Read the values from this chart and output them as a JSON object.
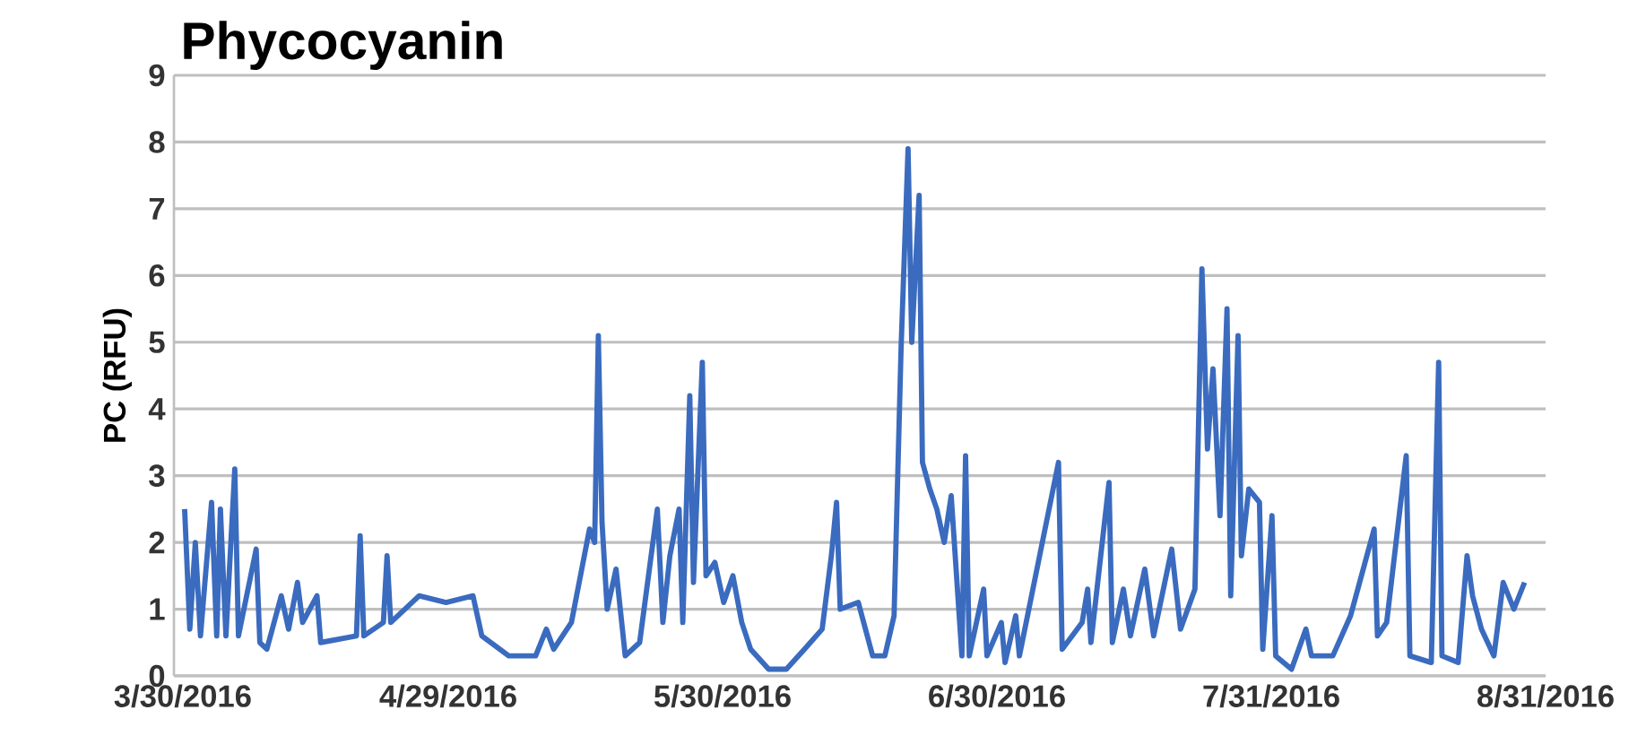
{
  "chart_data": {
    "type": "line",
    "title": "Phycocyanin",
    "ylabel": "PC (RFU)",
    "xlim": [
      "2016-03-29",
      "2016-08-31"
    ],
    "xticks": [
      {
        "value": "2016-03-30",
        "label": "3/30/2016"
      },
      {
        "value": "2016-04-29",
        "label": "4/29/2016"
      },
      {
        "value": "2016-05-30",
        "label": "5/30/2016"
      },
      {
        "value": "2016-06-30",
        "label": "6/30/2016"
      },
      {
        "value": "2016-07-31",
        "label": "7/31/2016"
      },
      {
        "value": "2016-08-31",
        "label": "8/31/2016"
      }
    ],
    "ylim": [
      0,
      9
    ],
    "yticks": [
      0,
      1,
      2,
      3,
      4,
      5,
      6,
      7,
      8,
      9
    ],
    "grid": "y",
    "marker": "none",
    "line_style": "solid",
    "series": [
      {
        "color": "#3a6bbf",
        "x": [
          "2016-03-30T05:00",
          "2016-03-30T19:00",
          "2016-03-31T10:00",
          "2016-04-01T00:00",
          "2016-04-02T06:00",
          "2016-04-02T20:00",
          "2016-04-03T06:00",
          "2016-04-03T21:00",
          "2016-04-04T21:00",
          "2016-04-05T07:00",
          "2016-04-07T07:00",
          "2016-04-07T17:00",
          "2016-04-08T12:00",
          "2016-04-10T03:00",
          "2016-04-10T23:00",
          "2016-04-11T23:00",
          "2016-04-12T13:00",
          "2016-04-14T04:00",
          "2016-04-14T14:00",
          "2016-04-18T15:00",
          "2016-04-19T01:00",
          "2016-04-19T11:00",
          "2016-04-21T16:00",
          "2016-04-22T02:00",
          "2016-04-22T12:00",
          "2016-04-25T17:00",
          "2016-04-28T18:00",
          "2016-05-01T19:00",
          "2016-05-02T19:00",
          "2016-05-05T20:00",
          "2016-05-08T21:00",
          "2016-05-10T02:00",
          "2016-05-10T22:00",
          "2016-05-12T22:00",
          "2016-05-14T23:00",
          "2016-05-15T13:00",
          "2016-05-15T23:00",
          "2016-05-16T09:00",
          "2016-05-16T23:00",
          "2016-05-17T23:00",
          "2016-05-19T00:00",
          "2016-05-20T15:00",
          "2016-05-22T15:00",
          "2016-05-23T06:00",
          "2016-05-24T01:00",
          "2016-05-25T02:00",
          "2016-05-25T12:00",
          "2016-05-26T07:00",
          "2016-05-26T17:00",
          "2016-05-27T17:00",
          "2016-05-28T03:00",
          "2016-05-29T03:00",
          "2016-05-30T03:00",
          "2016-05-31T04:00",
          "2016-06-01T04:00",
          "2016-06-02T04:00",
          "2016-06-04T05:00",
          "2016-06-06T05:00",
          "2016-06-08T06:00",
          "2016-06-10T06:00",
          "2016-06-11T07:00",
          "2016-06-11T21:00",
          "2016-06-12T07:00",
          "2016-06-14T08:00",
          "2016-06-15T23:00",
          "2016-06-17T08:00",
          "2016-06-18T09:00",
          "2016-06-19T04:00",
          "2016-06-19T23:00",
          "2016-06-20T09:00",
          "2016-06-21T05:00",
          "2016-06-21T14:00",
          "2016-06-22T10:00",
          "2016-06-23T05:00",
          "2016-06-24T01:00",
          "2016-06-24T20:00",
          "2016-06-26T01:00",
          "2016-06-26T11:00",
          "2016-06-26T21:00",
          "2016-06-28T12:00",
          "2016-06-28T21:00",
          "2016-06-30T12:00",
          "2016-06-30T22:00",
          "2016-07-02T03:00",
          "2016-07-02T13:00",
          "2016-07-06T23:00",
          "2016-07-07T09:00",
          "2016-07-09T15:00",
          "2016-07-10T06:00",
          "2016-07-10T15:00",
          "2016-07-12T16:00",
          "2016-07-13T01:00",
          "2016-07-14T07:00",
          "2016-07-15T02:00",
          "2016-07-16T17:00",
          "2016-07-17T17:00",
          "2016-07-19T18:00",
          "2016-07-20T18:00",
          "2016-07-22T09:00",
          "2016-07-23T04:00",
          "2016-07-23T19:00",
          "2016-07-24T10:00",
          "2016-07-25T05:00",
          "2016-07-26T00:00",
          "2016-07-26T10:00",
          "2016-07-27T06:00",
          "2016-07-27T15:00",
          "2016-07-28T11:00",
          "2016-07-29T16:00",
          "2016-07-30T01:00",
          "2016-07-31T02:00",
          "2016-07-31T12:00",
          "2016-08-02T07:00",
          "2016-08-03T22:00",
          "2016-08-04T13:00",
          "2016-08-06T23:00",
          "2016-08-08T23:00",
          "2016-08-11T15:00",
          "2016-08-12T00:00",
          "2016-08-13T01:00",
          "2016-08-15T06:00",
          "2016-08-15T16:00",
          "2016-08-18T02:00",
          "2016-08-18T22:00",
          "2016-08-19T07:00",
          "2016-08-21T03:00",
          "2016-08-22T03:00",
          "2016-08-22T18:00",
          "2016-08-23T18:00",
          "2016-08-25T04:00",
          "2016-08-26T05:00",
          "2016-08-27T10:00",
          "2016-08-28T15:00"
        ],
        "values": [
          2.5,
          0.7,
          2.0,
          0.6,
          2.6,
          0.6,
          2.5,
          0.6,
          3.1,
          0.6,
          1.9,
          0.5,
          0.4,
          1.2,
          0.7,
          1.4,
          0.8,
          1.2,
          0.5,
          0.6,
          2.1,
          0.6,
          0.8,
          1.8,
          0.8,
          1.2,
          1.1,
          1.2,
          0.6,
          0.3,
          0.3,
          0.7,
          0.4,
          0.8,
          2.2,
          2.0,
          5.1,
          2.3,
          1.0,
          1.6,
          0.3,
          0.5,
          2.5,
          0.8,
          1.8,
          2.5,
          0.8,
          4.2,
          1.4,
          4.7,
          1.5,
          1.7,
          1.1,
          1.5,
          0.8,
          0.4,
          0.1,
          0.1,
          0.4,
          0.7,
          1.8,
          2.6,
          1.0,
          1.1,
          0.3,
          0.3,
          0.9,
          4.9,
          7.9,
          5.0,
          7.2,
          3.2,
          2.8,
          2.5,
          2.0,
          2.7,
          0.3,
          3.3,
          0.3,
          1.3,
          0.3,
          0.8,
          0.2,
          0.9,
          0.3,
          3.2,
          0.4,
          0.8,
          1.3,
          0.5,
          2.9,
          0.5,
          1.3,
          0.6,
          1.6,
          0.6,
          1.9,
          0.7,
          1.3,
          6.1,
          3.4,
          4.6,
          2.4,
          5.5,
          1.2,
          5.1,
          1.8,
          2.8,
          2.6,
          0.4,
          2.4,
          0.3,
          0.1,
          0.7,
          0.3,
          0.3,
          0.9,
          2.2,
          0.6,
          0.8,
          3.3,
          0.3,
          0.2,
          4.7,
          0.3,
          0.2,
          1.8,
          1.2,
          0.7,
          0.3,
          1.4,
          1.0,
          1.4
        ]
      }
    ]
  }
}
